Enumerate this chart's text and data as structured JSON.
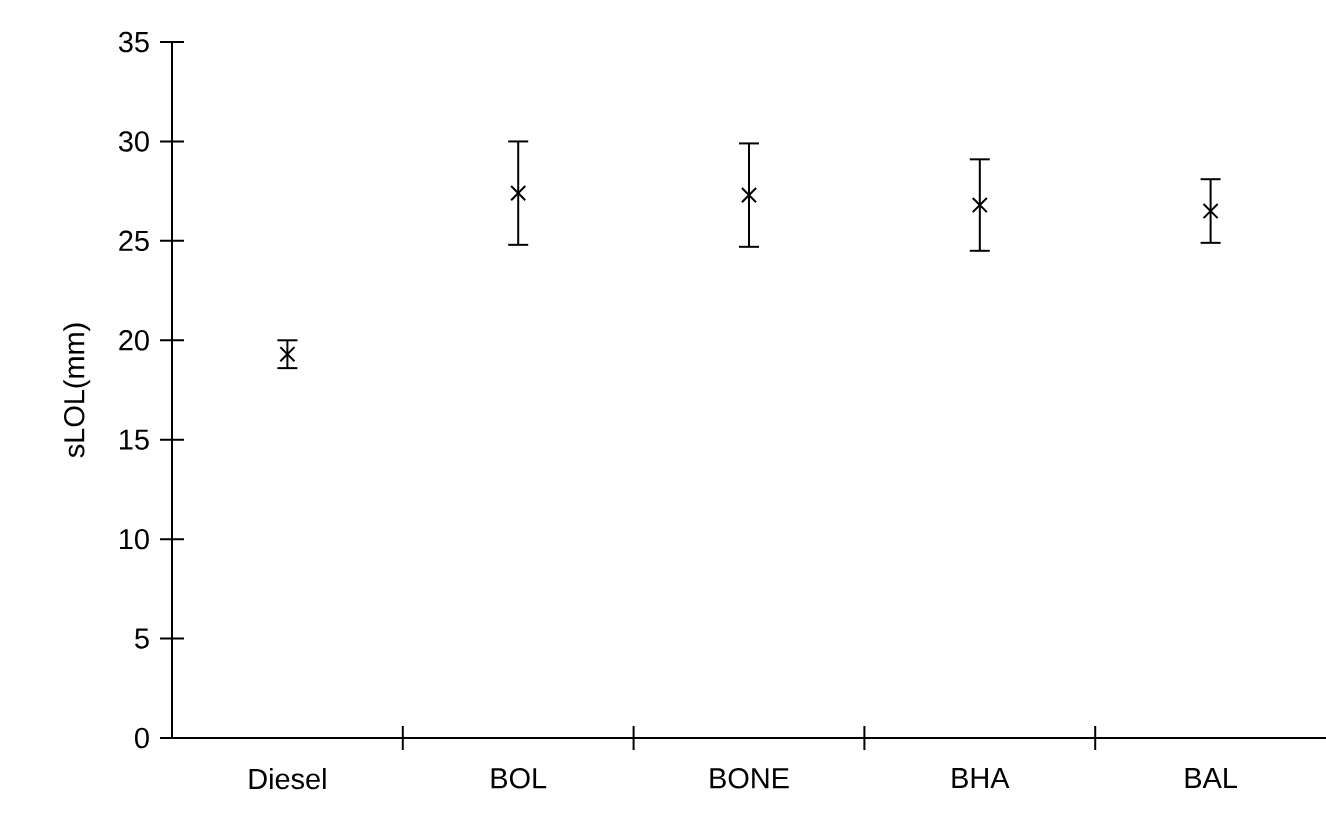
{
  "chart_data": {
    "type": "scatter",
    "ylabel": "sLOL(mm)",
    "categories": [
      "Diesel",
      "BOL",
      "BONE",
      "BHA",
      "BAL"
    ],
    "values": [
      19.3,
      27.4,
      27.3,
      26.8,
      26.5
    ],
    "errors": [
      0.7,
      2.6,
      2.6,
      2.3,
      1.6
    ],
    "color": "#000000",
    "marker": "cross",
    "ylim": [
      0,
      35
    ],
    "yticks": [
      0,
      5,
      10,
      15,
      20,
      25,
      30,
      35
    ],
    "grid": false
  }
}
